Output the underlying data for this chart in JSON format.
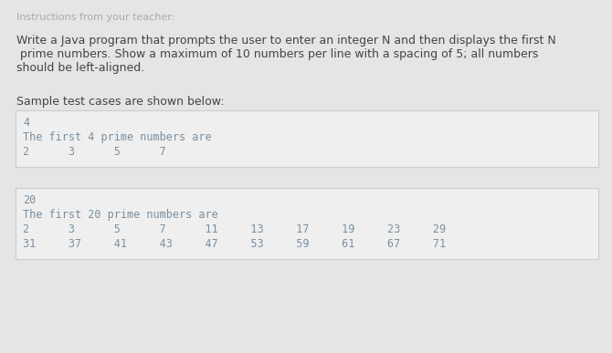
{
  "bg_color": "#e5e5e5",
  "box_color": "#efefef",
  "box_border_color": "#cccccc",
  "title_text": "Instructions from your teacher:",
  "title_color": "#aaaaaa",
  "title_fontsize": 8.0,
  "body_lines": [
    "Write a Java program that prompts the user to enter an integer N and then displays the first N",
    " prime numbers. Show a maximum of 10 numbers per line with a spacing of 5; all numbers",
    "should be left-aligned."
  ],
  "body_color": "#444444",
  "body_fontsize": 9.0,
  "sample_label": "Sample test cases are shown below:",
  "sample_label_color": "#444444",
  "sample_label_fontsize": 9.0,
  "box1_lines": [
    "4",
    "The first 4 prime numbers are",
    "2      3      5      7"
  ],
  "box2_lines": [
    "20",
    "The first 20 prime numbers are",
    "2      3      5      7      11     13     17     19     23     29",
    "31     37     41     43     47     53     59     61     67     71"
  ],
  "mono_color": "#7a8fa0",
  "mono_fontsize": 8.5,
  "highlight_color": "#5577bb"
}
